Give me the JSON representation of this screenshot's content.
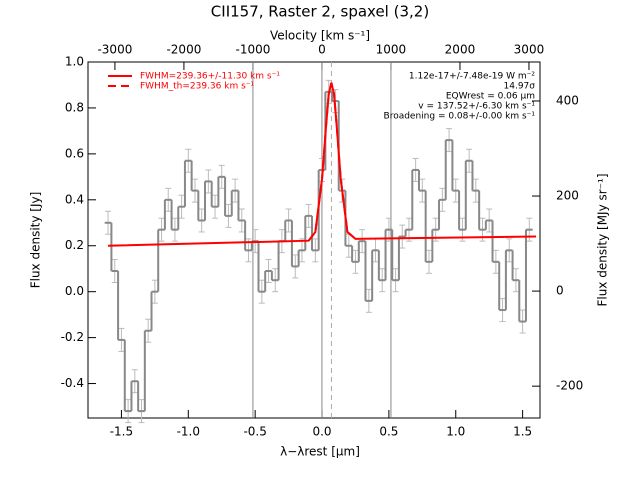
{
  "chart_data": {
    "type": "line",
    "title": "CII157, Raster 2, spaxel (3,2)",
    "xlabel": "λ−λrest [μm]",
    "ylabel": "Flux density [Jy]",
    "y2label": "Flux density [MJy sr⁻¹]",
    "x2label": "Velocity [km s⁻¹]",
    "xlim": [
      -1.75,
      1.63
    ],
    "ylim": [
      -0.55,
      1.0
    ],
    "x2lim": [
      -3390,
      3160
    ],
    "y2lim": [
      -267,
      482
    ],
    "xticks": [
      -1.5,
      {
        "value": -1.0,
        "label": "-1.0"
      },
      -0.5,
      {
        "value": 0.0,
        "label": "0.0"
      },
      0.5,
      {
        "value": 1.0,
        "label": "1.0"
      },
      1.5
    ],
    "yticks": [
      -0.4,
      -0.2,
      {
        "value": 0.0,
        "label": "0.0"
      },
      0.2,
      0.4,
      0.6,
      0.8,
      {
        "value": 1.0,
        "label": "1.0"
      }
    ],
    "x2ticks": [
      -3000,
      -2000,
      -1000,
      0,
      1000,
      2000,
      3000
    ],
    "y2ticks": [
      -200,
      0,
      200,
      400
    ],
    "velocity_lines": [
      -1000,
      0,
      1000
    ],
    "center_velocity": 137.52,
    "spectrum": {
      "color": "#888888",
      "x": [
        -1.6,
        -1.55,
        -1.5,
        -1.45,
        -1.4,
        -1.35,
        -1.3,
        -1.25,
        -1.2,
        -1.15,
        -1.1,
        -1.05,
        -1.0,
        -0.95,
        -0.9,
        -0.85,
        -0.8,
        -0.75,
        -0.7,
        -0.65,
        -0.6,
        -0.55,
        -0.5,
        -0.45,
        -0.4,
        -0.35,
        -0.3,
        -0.25,
        -0.2,
        -0.15,
        -0.1,
        -0.05,
        0.0,
        0.05,
        0.1,
        0.15,
        0.2,
        0.25,
        0.3,
        0.35,
        0.4,
        0.45,
        0.5,
        0.55,
        0.6,
        0.65,
        0.7,
        0.75,
        0.8,
        0.85,
        0.9,
        0.95,
        1.0,
        1.05,
        1.1,
        1.15,
        1.2,
        1.25,
        1.3,
        1.35,
        1.4,
        1.45,
        1.5,
        1.55
      ],
      "values": [
        0.3,
        0.09,
        -0.21,
        -0.52,
        -0.39,
        -0.52,
        -0.17,
        0.0,
        0.27,
        0.4,
        0.27,
        0.37,
        0.57,
        0.44,
        0.31,
        0.48,
        0.37,
        0.5,
        0.33,
        0.44,
        0.31,
        0.18,
        0.22,
        0.0,
        0.09,
        0.05,
        0.22,
        0.31,
        0.11,
        0.18,
        0.33,
        0.18,
        0.53,
        0.87,
        0.83,
        0.44,
        0.2,
        0.13,
        0.22,
        -0.04,
        0.18,
        0.05,
        0.27,
        0.05,
        0.24,
        0.27,
        0.53,
        0.44,
        0.13,
        0.27,
        0.4,
        0.66,
        0.44,
        0.27,
        0.57,
        0.44,
        0.27,
        0.31,
        0.13,
        -0.08,
        0.18,
        0.05,
        -0.13,
        0.27
      ],
      "errors": [
        0.05,
        0.05,
        0.05,
        0.05,
        0.05,
        0.05,
        0.05,
        0.05,
        0.05,
        0.05,
        0.05,
        0.05,
        0.05,
        0.05,
        0.05,
        0.05,
        0.05,
        0.05,
        0.05,
        0.05,
        0.05,
        0.05,
        0.05,
        0.05,
        0.05,
        0.05,
        0.05,
        0.05,
        0.05,
        0.05,
        0.05,
        0.05,
        0.05,
        0.05,
        0.05,
        0.05,
        0.05,
        0.05,
        0.05,
        0.05,
        0.05,
        0.05,
        0.05,
        0.05,
        0.05,
        0.05,
        0.05,
        0.05,
        0.05,
        0.05,
        0.05,
        0.05,
        0.05,
        0.05,
        0.05,
        0.05,
        0.05,
        0.05,
        0.05,
        0.05,
        0.05,
        0.05,
        0.05,
        0.05
      ]
    },
    "series": [
      {
        "name": "FWHM=239.36+/-11.30 km s⁻¹",
        "color": "#ff0000",
        "linestyle": "solid",
        "x": [
          -1.6,
          -0.1,
          -0.05,
          0.0,
          0.03,
          0.05,
          0.07,
          0.09,
          0.11,
          0.14,
          0.19,
          0.25,
          1.6
        ],
        "values": [
          0.2,
          0.222,
          0.26,
          0.49,
          0.72,
          0.86,
          0.91,
          0.86,
          0.72,
          0.49,
          0.26,
          0.23,
          0.24
        ]
      },
      {
        "name": "FWHM_th=239.36 km s⁻¹",
        "color": "#ff0000",
        "linestyle": "dashed",
        "x": [
          -0.1,
          -0.05,
          0.0,
          0.03,
          0.05,
          0.07,
          0.09,
          0.11,
          0.14,
          0.19,
          0.25
        ],
        "values": [
          0.222,
          0.26,
          0.49,
          0.72,
          0.86,
          0.91,
          0.86,
          0.72,
          0.49,
          0.26,
          0.23
        ]
      }
    ],
    "annotations": [
      "1.12e-17+/-7.48e-19 W m⁻²",
      "14.97σ",
      "EQWrest = 0.06 μm",
      "v = 137.52+/-6.30 km s⁻¹",
      "Broadening = 0.08+/-0.00 km s⁻¹"
    ]
  }
}
